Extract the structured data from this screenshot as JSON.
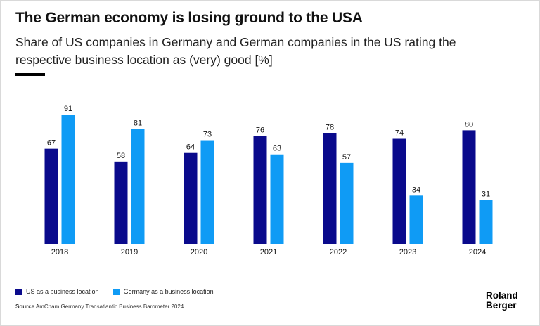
{
  "title": "The German economy is losing ground to the USA",
  "subtitle": "Share of US companies in Germany and German companies in the US rating the respective business location as (very) good [%]",
  "chart_data": {
    "type": "bar",
    "title": "The German economy is losing ground to the USA",
    "subtitle": "Share of US companies in Germany and German companies in the US rating the respective business location as (very) good [%]",
    "categories": [
      "2018",
      "2019",
      "2020",
      "2021",
      "2022",
      "2023",
      "2024"
    ],
    "series": [
      {
        "name": "US as a business location",
        "color": "#0a0a8c",
        "values": [
          67,
          58,
          64,
          76,
          78,
          74,
          80
        ]
      },
      {
        "name": "Germany as a business location",
        "color": "#0f9bf5",
        "values": [
          91,
          81,
          73,
          63,
          57,
          34,
          31
        ]
      }
    ],
    "xlabel": "",
    "ylabel": "%",
    "ylim": [
      0,
      100
    ],
    "grid": false,
    "legend": "bottom-left",
    "data_labels": true
  },
  "legend": {
    "us_label": "US as a business location",
    "de_label": "Germany as a business location"
  },
  "source": {
    "label": "Source",
    "text": "AmCham Germany Transatlantic Business Barometer 2024"
  },
  "logo": {
    "line1": "Roland",
    "line2": "Berger"
  }
}
